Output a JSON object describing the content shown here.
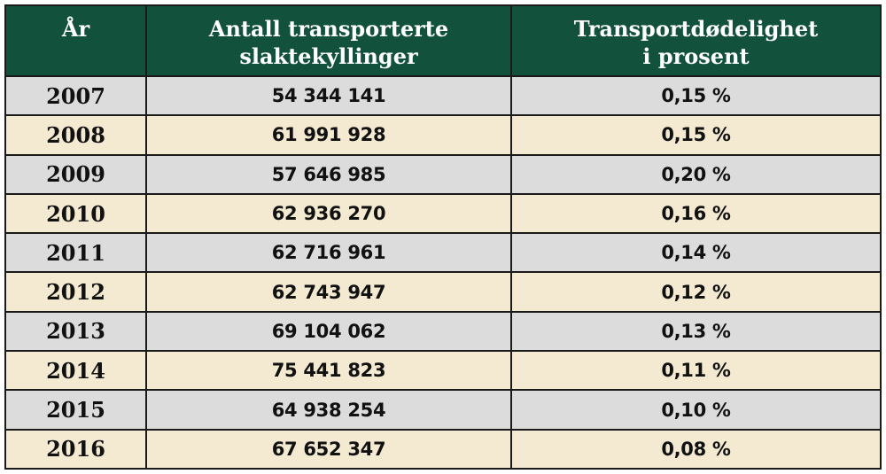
{
  "table": {
    "headers": [
      [
        "År"
      ],
      [
        "Antall transporterte",
        "slaktekyllinger"
      ],
      [
        "Transportdødelighet",
        "i prosent"
      ]
    ],
    "row_colors": [
      "#dcdcdc",
      "#f4ead2"
    ],
    "header_color": "#12523c"
  },
  "chart_data": {
    "type": "table",
    "columns": [
      "År",
      "Antall transporterte slaktekyllinger",
      "Transportdødelighet i prosent"
    ],
    "rows": [
      [
        "2007",
        "54 344 141",
        "0,15 %"
      ],
      [
        "2008",
        "61 991 928",
        "0,15 %"
      ],
      [
        "2009",
        "57 646 985",
        "0,20 %"
      ],
      [
        "2010",
        "62 936 270",
        "0,16 %"
      ],
      [
        "2011",
        "62 716 961",
        "0,14 %"
      ],
      [
        "2012",
        "62 743 947",
        "0,12 %"
      ],
      [
        "2013",
        "69 104 062",
        "0,13 %"
      ],
      [
        "2014",
        "75 441 823",
        "0,11 %"
      ],
      [
        "2015",
        "64 938 254",
        "0,10 %"
      ],
      [
        "2016",
        "67 652 347",
        "0,08 %"
      ]
    ]
  }
}
